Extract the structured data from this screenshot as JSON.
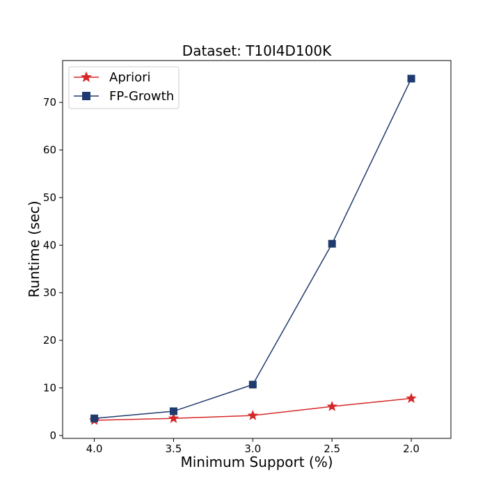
{
  "chart_data": {
    "type": "line",
    "title": "Dataset: T10I4D100K",
    "xlabel": "Minimum Support (%)",
    "ylabel": "Runtime (sec)",
    "x": [
      "4.0",
      "3.5",
      "3.0",
      "2.5",
      "2.0"
    ],
    "xlim": [
      4.2,
      1.75
    ],
    "ylim": [
      -0.6,
      78.8
    ],
    "y_ticks": [
      0,
      10,
      20,
      30,
      40,
      50,
      60,
      70
    ],
    "grid": false,
    "legend_position": "top-left",
    "series": [
      {
        "name": "Apriori",
        "marker": "star",
        "color": "#d62728",
        "values": [
          3.2,
          3.6,
          4.2,
          6.1,
          7.8
        ]
      },
      {
        "name": "FP-Growth",
        "marker": "square",
        "color": "#1f3a6e",
        "values": [
          3.6,
          5.1,
          10.7,
          40.3,
          75.0
        ]
      }
    ]
  }
}
